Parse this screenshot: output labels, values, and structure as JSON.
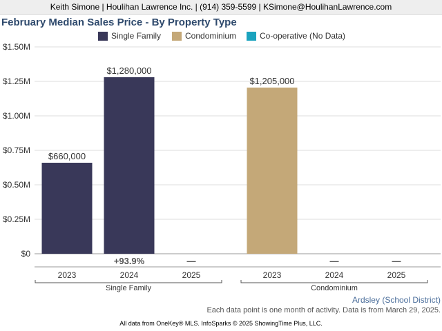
{
  "header": {
    "contact": "Keith Simone | Houlihan Lawrence Inc. | (914) 359-5599 | KSimone@HoulihanLawrence.com"
  },
  "legend": [
    {
      "label": "Single Family",
      "color": "#393859"
    },
    {
      "label": "Condominium",
      "color": "#c4a878"
    },
    {
      "label": "Co-operative (No Data)",
      "color": "#1ba3be"
    }
  ],
  "chart_data": {
    "type": "bar",
    "title": "February Median Sales Price - By Property Type",
    "ylim": [
      0,
      1500000
    ],
    "y_ticks": [
      {
        "value": 0,
        "label": "$0"
      },
      {
        "value": 250000,
        "label": "$0.25M"
      },
      {
        "value": 500000,
        "label": "$0.50M"
      },
      {
        "value": 750000,
        "label": "$0.75M"
      },
      {
        "value": 1000000,
        "label": "$1.00M"
      },
      {
        "value": 1250000,
        "label": "$1.25M"
      },
      {
        "value": 1500000,
        "label": "$1.50M"
      }
    ],
    "grid": true,
    "legend_position": "top",
    "groups": [
      {
        "name": "Single Family",
        "color": "#393859",
        "bars": [
          {
            "year": "2023",
            "value": 660000,
            "label": "$660,000",
            "change": ""
          },
          {
            "year": "2024",
            "value": 1280000,
            "label": "$1,280,000",
            "change": "+93.9%"
          },
          {
            "year": "2025",
            "value": null,
            "label": "",
            "change": "—"
          }
        ]
      },
      {
        "name": "Condominium",
        "color": "#c4a878",
        "bars": [
          {
            "year": "2023",
            "value": 1205000,
            "label": "$1,205,000",
            "change": ""
          },
          {
            "year": "2024",
            "value": null,
            "label": "",
            "change": "—"
          },
          {
            "year": "2025",
            "value": null,
            "label": "",
            "change": "—"
          }
        ]
      }
    ]
  },
  "footer": {
    "location": "Ardsley (School District)",
    "note": "Each data point is one month of activity. Data is from March 29, 2025.",
    "copyright": "All data from OneKey® MLS. InfoSparks © 2025 ShowingTime Plus, LLC."
  }
}
